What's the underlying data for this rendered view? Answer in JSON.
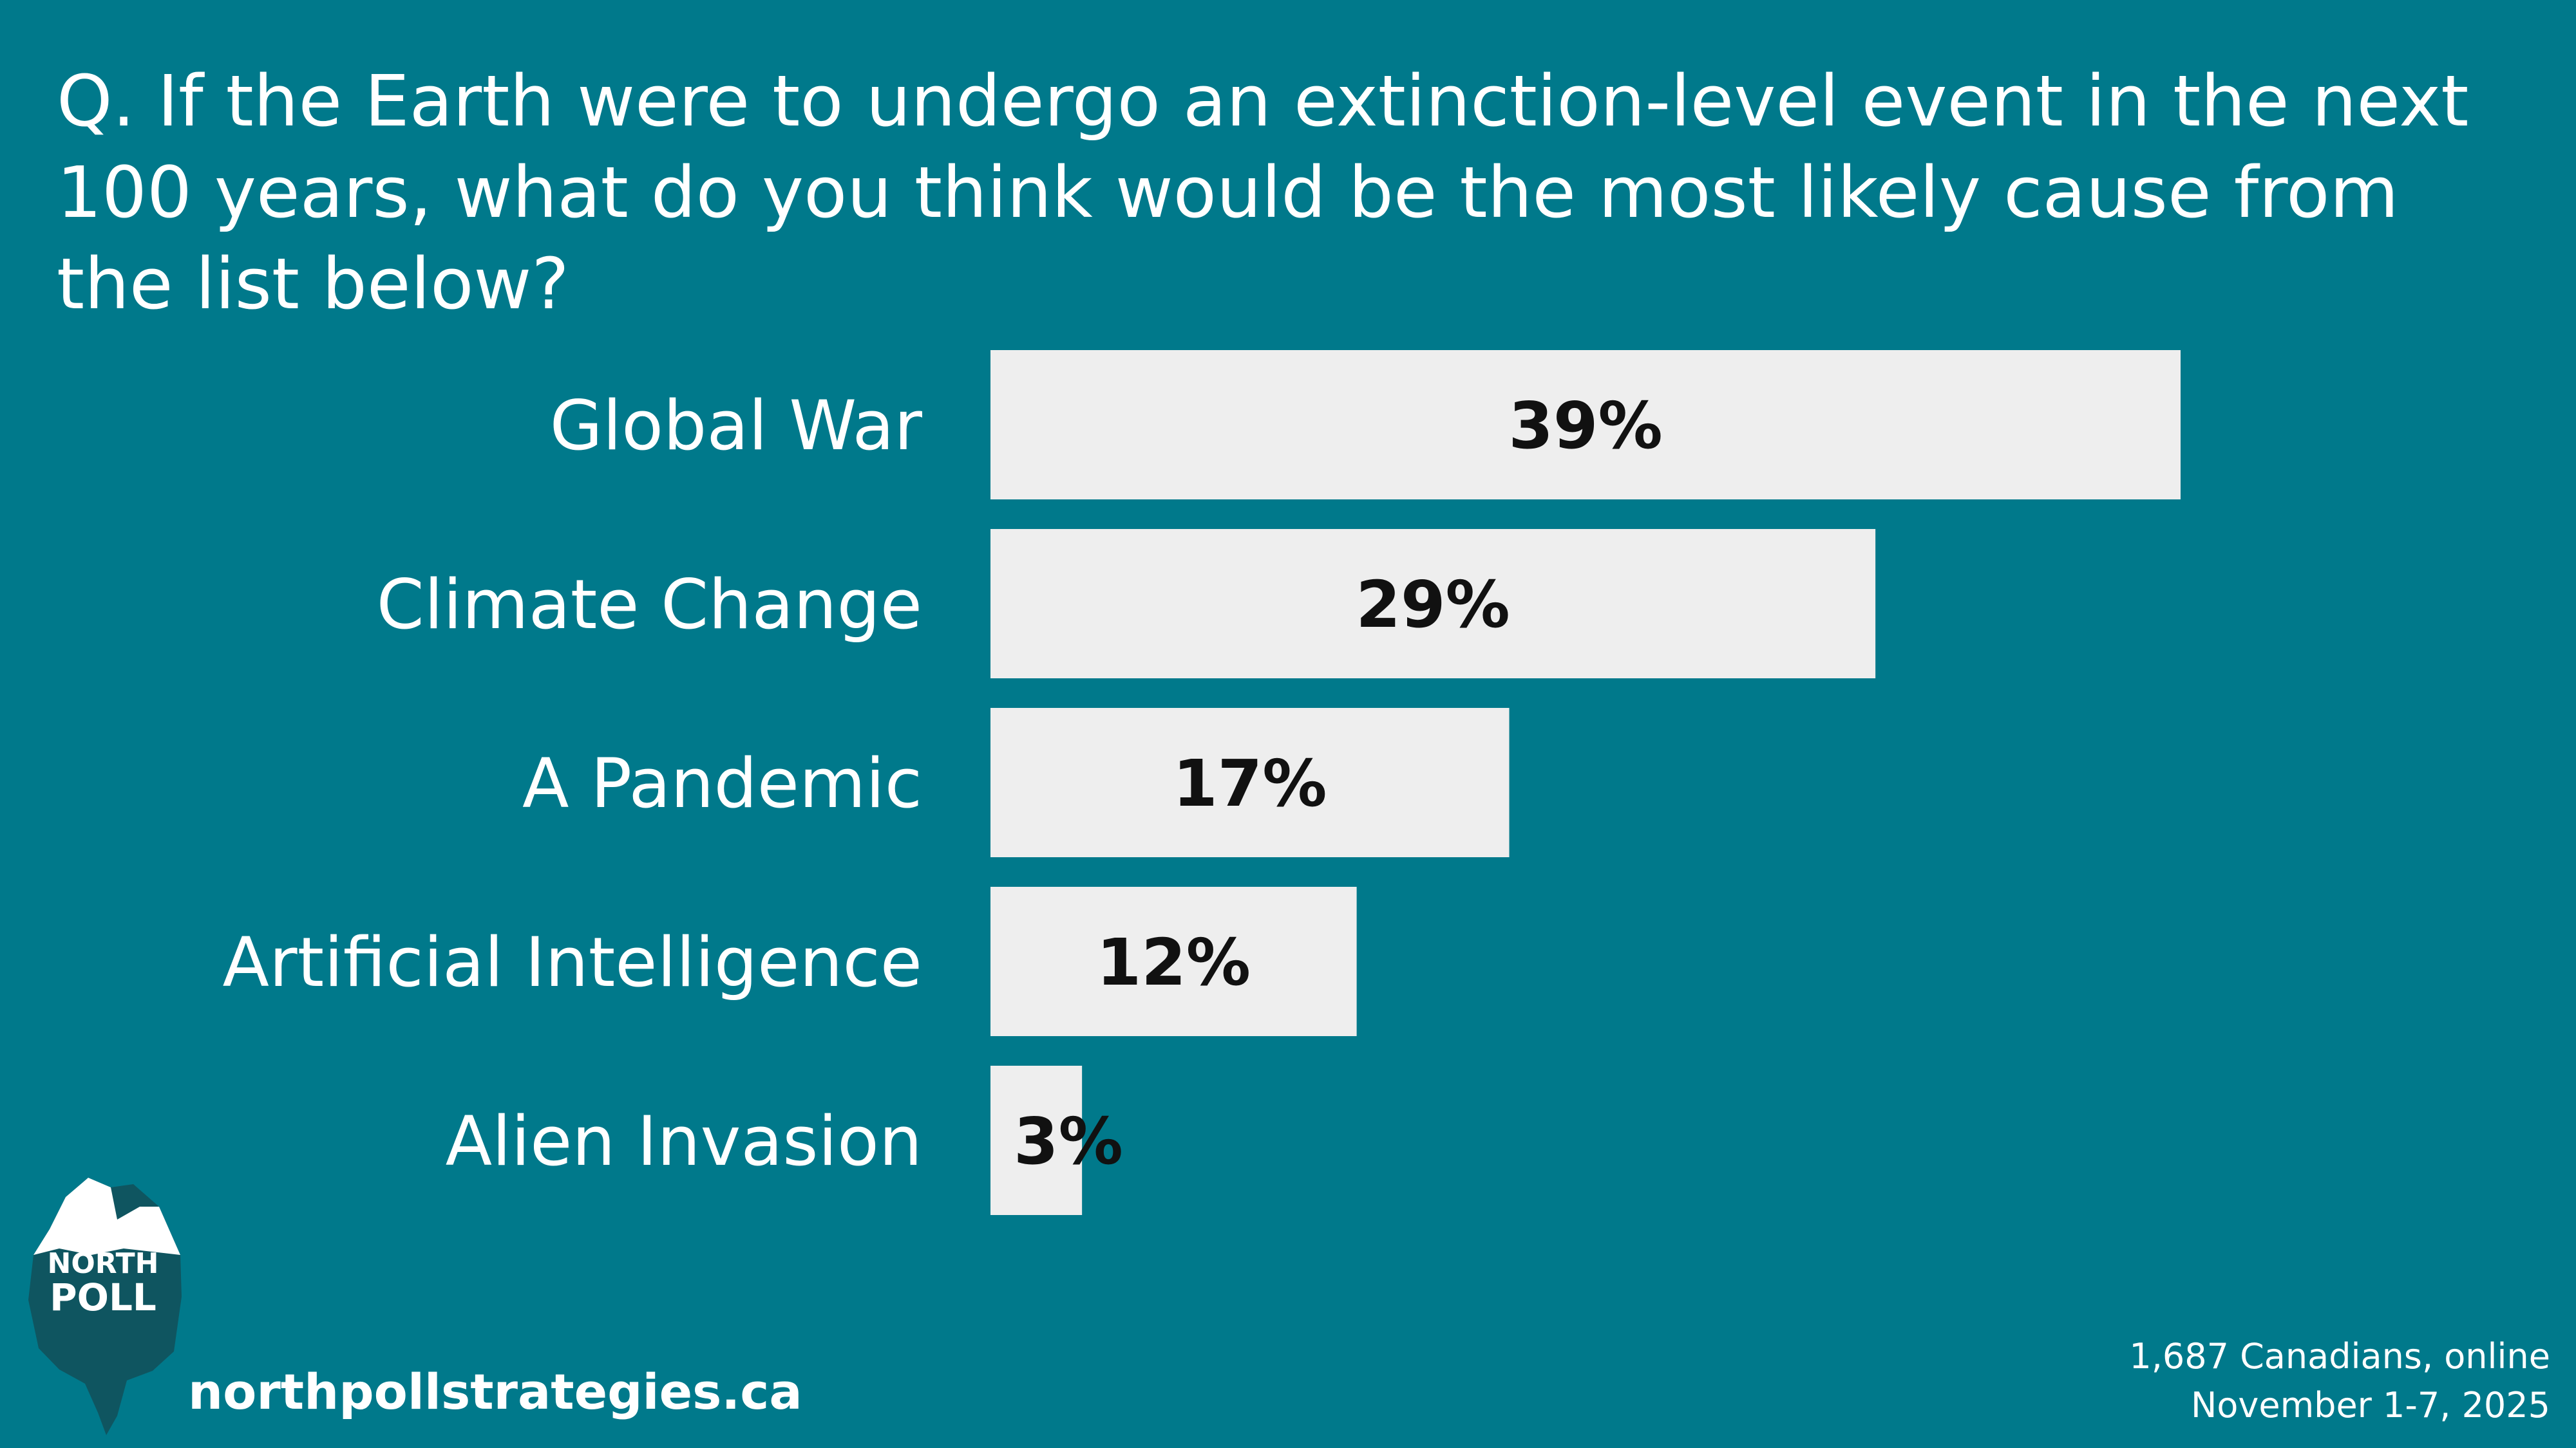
{
  "question": "Q. If the Earth were to undergo an extinction-level event in the next 100 years, what do you think would be the most likely cause from the list below?",
  "colors": {
    "background": "#00798b",
    "bar": "#eeeeee",
    "value_text": "#111111",
    "label_text": "#ffffff",
    "logo_dark": "#0f5560",
    "logo_mid": "#2f8f9a"
  },
  "chart_data": {
    "type": "bar",
    "orientation": "horizontal",
    "categories": [
      "Global War",
      "Climate Change",
      "A Pandemic",
      "Artificial Intelligence",
      "Alien Invasion"
    ],
    "values": [
      39,
      29,
      17,
      12,
      3
    ],
    "value_labels": [
      "39%",
      "29%",
      "17%",
      "12%",
      "3%"
    ],
    "xlim": [
      0,
      39
    ],
    "grid": false,
    "legend": "none"
  },
  "logo": {
    "line1": "NORTH",
    "line2": "POLL",
    "icon": "iceberg-icon"
  },
  "website": "northpollstrategies.ca",
  "footnote": {
    "line1": "1,687 Canadians, online",
    "line2": "November 1-7, 2025"
  }
}
